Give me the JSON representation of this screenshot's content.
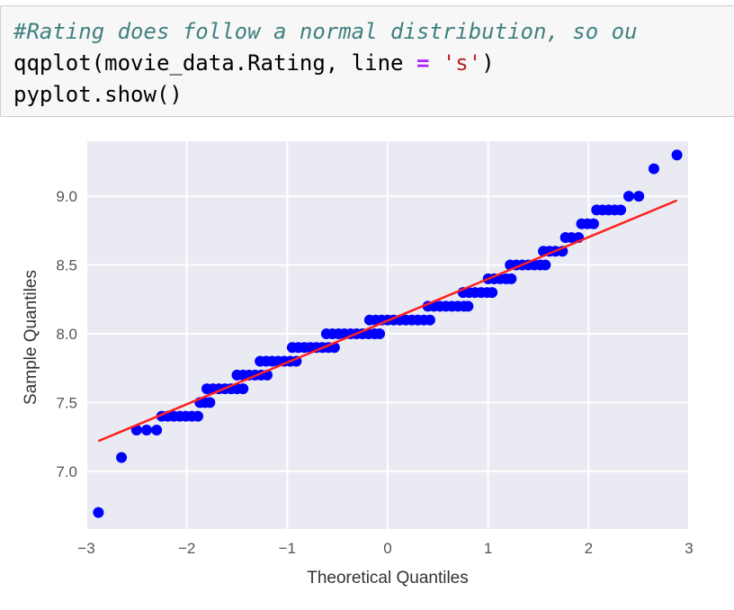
{
  "code_cell": {
    "comment": "#Rating does follow a normal distribution, so ou",
    "line2_func": "qqplot(movie_data.Rating, line ",
    "line2_op": "=",
    "line2_space": " ",
    "line2_str": "'s'",
    "line2_close": ")",
    "line3": "pyplot.show()"
  },
  "colors": {
    "plot_bg": "#eaeaf2",
    "grid": "#ffffff",
    "points": "#0000ff",
    "fit_line": "#ff2020",
    "tick_text": "#555555"
  },
  "chart_data": {
    "type": "scatter",
    "xlabel": "Theoretical Quantiles",
    "ylabel": "Sample Quantiles",
    "xlim": [
      -3,
      3
    ],
    "ylim": [
      6.58,
      9.4
    ],
    "xticks": [
      -3,
      -2,
      -1,
      0,
      1,
      2,
      3
    ],
    "xtick_labels": [
      "−3",
      "−2",
      "−1",
      "0",
      "1",
      "2",
      "3"
    ],
    "yticks": [
      7.0,
      7.5,
      8.0,
      8.5,
      9.0
    ],
    "ytick_labels": [
      "7.0",
      "7.5",
      "8.0",
      "8.5",
      "9.0"
    ],
    "grid": true,
    "fit_line": {
      "x": [
        -2.88,
        2.88
      ],
      "y": [
        7.22,
        8.97
      ]
    },
    "series": [
      {
        "groups": [
          {
            "y": 6.7,
            "x": [
              -2.88
            ]
          },
          {
            "y": 7.1,
            "x": [
              -2.65
            ]
          },
          {
            "y": 7.3,
            "x": [
              -2.5,
              -2.4,
              -2.3
            ]
          },
          {
            "y": 7.4,
            "x": [
              -2.25,
              -2.19,
              -2.13,
              -2.07,
              -2.01,
              -1.95,
              -1.89
            ]
          },
          {
            "y": 7.5,
            "x": [
              -1.87,
              -1.82,
              -1.77
            ]
          },
          {
            "y": 7.6,
            "x": [
              -1.8,
              -1.74,
              -1.68,
              -1.62,
              -1.56,
              -1.5,
              -1.44
            ]
          },
          {
            "y": 7.7,
            "x": [
              -1.5,
              -1.44,
              -1.38,
              -1.32,
              -1.26,
              -1.2
            ]
          },
          {
            "y": 7.8,
            "x": [
              -1.27,
              -1.21,
              -1.15,
              -1.09,
              -1.03,
              -0.97,
              -0.91
            ]
          },
          {
            "y": 7.9,
            "x": [
              -0.95,
              -0.89,
              -0.83,
              -0.77,
              -0.71,
              -0.65,
              -0.59,
              -0.53
            ]
          },
          {
            "y": 8.0,
            "x": [
              -0.61,
              -0.55,
              -0.49,
              -0.43,
              -0.37,
              -0.31,
              -0.25,
              -0.19,
              -0.13,
              -0.08
            ]
          },
          {
            "y": 8.1,
            "x": [
              -0.18,
              -0.12,
              -0.06,
              0.0,
              0.06,
              0.12,
              0.18,
              0.24,
              0.3,
              0.36,
              0.42
            ]
          },
          {
            "y": 8.2,
            "x": [
              0.4,
              0.46,
              0.52,
              0.58,
              0.64,
              0.7,
              0.76,
              0.8
            ]
          },
          {
            "y": 8.3,
            "x": [
              0.75,
              0.81,
              0.87,
              0.93,
              0.99,
              1.04
            ]
          },
          {
            "y": 8.4,
            "x": [
              1.0,
              1.06,
              1.12,
              1.18,
              1.23
            ]
          },
          {
            "y": 8.5,
            "x": [
              1.22,
              1.28,
              1.34,
              1.4,
              1.46,
              1.52,
              1.57
            ]
          },
          {
            "y": 8.6,
            "x": [
              1.55,
              1.61,
              1.67,
              1.74
            ]
          },
          {
            "y": 8.7,
            "x": [
              1.77,
              1.83,
              1.9
            ]
          },
          {
            "y": 8.8,
            "x": [
              1.93,
              1.99,
              2.05
            ]
          },
          {
            "y": 8.9,
            "x": [
              2.08,
              2.14,
              2.2,
              2.26,
              2.32
            ]
          },
          {
            "y": 9.0,
            "x": [
              2.4,
              2.5
            ]
          },
          {
            "y": 9.2,
            "x": [
              2.65
            ]
          },
          {
            "y": 9.3,
            "x": [
              2.88
            ]
          }
        ]
      }
    ]
  }
}
